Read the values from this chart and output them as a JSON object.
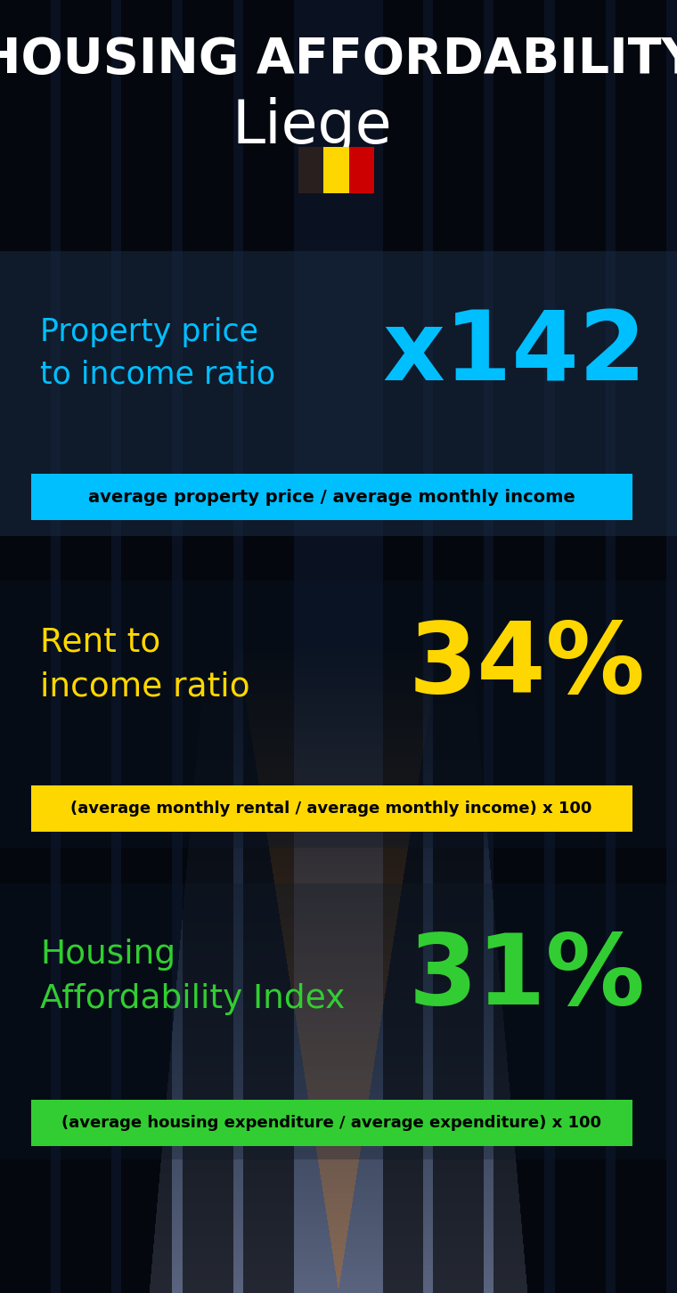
{
  "title_line1": "HOUSING AFFORDABILITY",
  "title_line2": "Liege",
  "bg_color": "#050d18",
  "title_color": "#ffffff",
  "city_color": "#ffffff",
  "section1_label": "Property price\nto income ratio",
  "section1_value": "x142",
  "section1_label_color": "#00bfff",
  "section1_value_color": "#00bfff",
  "section1_banner": "average property price / average monthly income",
  "section1_banner_bg": "#00bfff",
  "section1_banner_color": "#000000",
  "section2_label": "Rent to\nincome ratio",
  "section2_value": "34%",
  "section2_label_color": "#ffd700",
  "section2_value_color": "#ffd700",
  "section2_banner": "(average monthly rental / average monthly income) x 100",
  "section2_banner_bg": "#ffd700",
  "section2_banner_color": "#000000",
  "section3_label": "Housing\nAffordability Index",
  "section3_value": "31%",
  "section3_label_color": "#32cd32",
  "section3_value_color": "#32cd32",
  "section3_banner": "(average housing expenditure / average expenditure) x 100",
  "section3_banner_bg": "#32cd32",
  "section3_banner_color": "#000000",
  "flag_black": "#2a1f1f",
  "flag_yellow": "#FFD700",
  "flag_red": "#CC0000",
  "panel_color": "#0d1f35",
  "panel_alpha": 0.55
}
